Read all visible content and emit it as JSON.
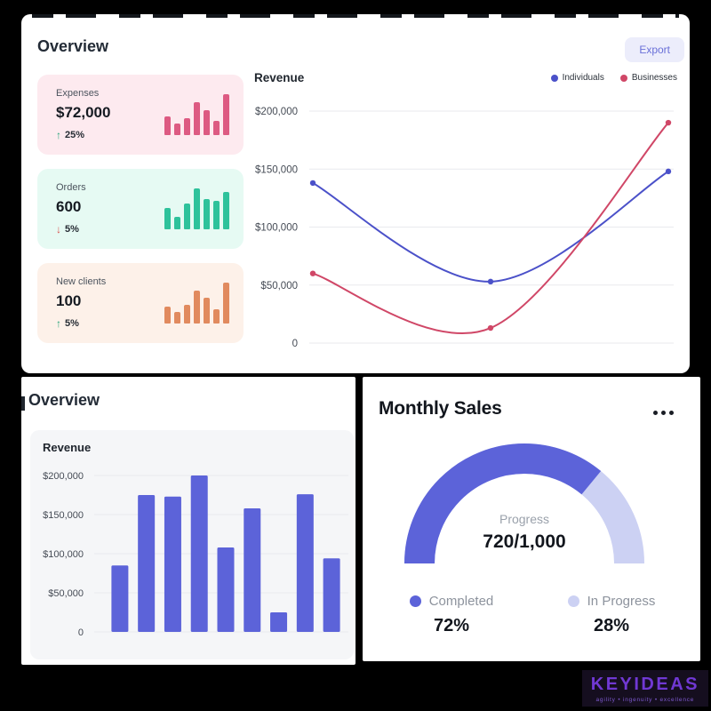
{
  "colors": {
    "accent_indigo": "#5c63d9",
    "accent_indigo_light": "#ccd1f3",
    "green_up": "#27a57a",
    "red_down": "#d9534f",
    "grid": "#e9eaee",
    "tick_text": "#454b55"
  },
  "top_panel": {
    "title": "Overview",
    "export_label": "Export",
    "stats": [
      {
        "label": "Expenses",
        "value": "$72,000",
        "delta": "25%",
        "direction": "up",
        "card_bg": "#fdeaef",
        "bar_color": "#dd5a82",
        "bars": [
          45,
          28,
          42,
          80,
          60,
          34,
          100
        ]
      },
      {
        "label": "Orders",
        "value": "600",
        "delta": "5%",
        "direction": "down",
        "card_bg": "#e6faf3",
        "bar_color": "#2ec29b",
        "bars": [
          52,
          30,
          62,
          100,
          74,
          70,
          92
        ]
      },
      {
        "label": "New clients",
        "value": "100",
        "delta": "5%",
        "direction": "up",
        "card_bg": "#fdf1e9",
        "bar_color": "#e18a5e",
        "bars": [
          42,
          28,
          46,
          80,
          62,
          35,
          100
        ]
      }
    ]
  },
  "bottom_left_panel": {
    "title": "Overview"
  },
  "bottom_right_panel": {
    "title": "Monthly Sales"
  },
  "watermark": {
    "brand": "KEYIDEAS",
    "tagline": "agility • ingenuity • excellence"
  },
  "chart_data": [
    {
      "type": "line",
      "title": "Revenue",
      "legend_position": "top-right",
      "grid": true,
      "ylim": [
        0,
        200000
      ],
      "yticks": [
        0,
        50000,
        100000,
        150000,
        200000
      ],
      "ytick_labels": [
        "0",
        "$50,000",
        "$100,000",
        "$150,000",
        "$200,000"
      ],
      "x_positions": [
        0,
        0.5,
        1
      ],
      "series": [
        {
          "name": "Individuals",
          "color": "#4b51c9",
          "values": [
            138000,
            53000,
            148000
          ]
        },
        {
          "name": "Businesses",
          "color": "#d04767",
          "values": [
            60000,
            13000,
            190000
          ]
        }
      ]
    },
    {
      "type": "bar",
      "title": "Revenue",
      "bar_color": "#5c63d9",
      "grid": true,
      "ylim": [
        0,
        200000
      ],
      "yticks": [
        0,
        50000,
        100000,
        150000,
        200000
      ],
      "ytick_labels": [
        "0",
        "$50,000",
        "$100,000",
        "$150,000",
        "$200,000"
      ],
      "values": [
        85000,
        175000,
        173000,
        200000,
        108000,
        158000,
        25000,
        176000,
        94000
      ]
    },
    {
      "type": "gauge",
      "title": "Monthly Sales",
      "center_label": "Progress",
      "center_value": "720/1,000",
      "total_angle_deg": 180,
      "segments": [
        {
          "label": "Completed",
          "pct": 72,
          "value_label": "72%",
          "color": "#5c63d9"
        },
        {
          "label": "In Progress",
          "pct": 28,
          "value_label": "28%",
          "color": "#ccd1f3"
        }
      ]
    }
  ]
}
